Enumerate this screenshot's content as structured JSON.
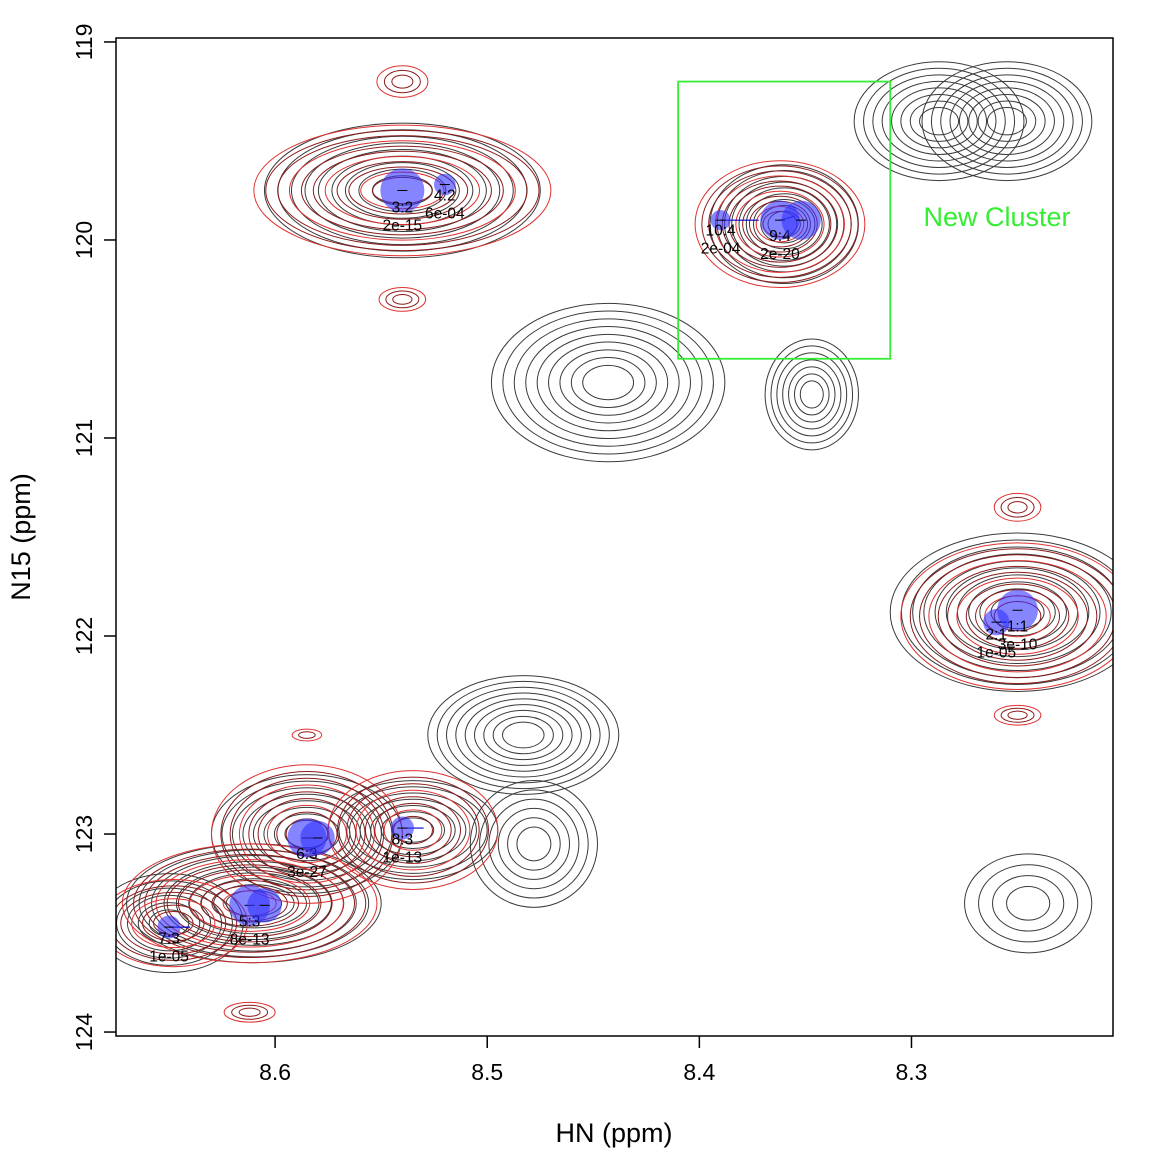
{
  "chart_data": {
    "type": "scatter",
    "subtype": "2D NMR HSQC contour overlay",
    "xlabel": "HN (ppm)",
    "ylabel": "N15 (ppm)",
    "xlim": [
      8.675,
      8.205
    ],
    "ylim": [
      124.02,
      118.98
    ],
    "x_reversed": true,
    "y_reversed": true,
    "xticks": [
      8.6,
      8.5,
      8.4,
      8.3
    ],
    "xtick_labels": [
      "8.6",
      "8.5",
      "8.4",
      "8.3"
    ],
    "yticks": [
      119,
      120,
      121,
      122,
      123,
      124
    ],
    "ytick_labels": [
      "119",
      "120",
      "121",
      "122",
      "123",
      "124"
    ],
    "grid": false,
    "colors": {
      "contour_reference": "#3a3a3a",
      "contour_sample_dark": "#8b1a1a",
      "contour_sample_light": "#e03030",
      "peak_fill": "#3333ff",
      "cluster_box": "#33ee33",
      "annotation": "#33ee33"
    },
    "contour_centers": [
      {
        "set": "reference",
        "x": 8.54,
        "y": 119.75,
        "rx": 0.065,
        "ry": 0.34,
        "levels": 9
      },
      {
        "set": "reference",
        "x": 8.36,
        "y": 119.92,
        "rx": 0.035,
        "ry": 0.3,
        "levels": 9
      },
      {
        "set": "reference",
        "x": 8.287,
        "y": 119.4,
        "rx": 0.04,
        "ry": 0.3,
        "levels": 8
      },
      {
        "set": "reference",
        "x": 8.255,
        "y": 119.4,
        "rx": 0.04,
        "ry": 0.3,
        "levels": 8
      },
      {
        "set": "reference",
        "x": 8.443,
        "y": 120.72,
        "rx": 0.055,
        "ry": 0.4,
        "levels": 9
      },
      {
        "set": "reference",
        "x": 8.347,
        "y": 120.78,
        "rx": 0.022,
        "ry": 0.28,
        "levels": 7
      },
      {
        "set": "reference",
        "x": 8.25,
        "y": 121.88,
        "rx": 0.06,
        "ry": 0.4,
        "levels": 10
      },
      {
        "set": "reference",
        "x": 8.483,
        "y": 122.5,
        "rx": 0.045,
        "ry": 0.3,
        "levels": 9
      },
      {
        "set": "reference",
        "x": 8.478,
        "y": 123.05,
        "rx": 0.03,
        "ry": 0.32,
        "levels": 6
      },
      {
        "set": "reference",
        "x": 8.245,
        "y": 123.35,
        "rx": 0.03,
        "ry": 0.25,
        "levels": 4
      },
      {
        "set": "reference",
        "x": 8.61,
        "y": 123.35,
        "rx": 0.06,
        "ry": 0.3,
        "levels": 9
      },
      {
        "set": "reference",
        "x": 8.585,
        "y": 123.0,
        "rx": 0.045,
        "ry": 0.3,
        "levels": 8
      },
      {
        "set": "reference",
        "x": 8.535,
        "y": 122.98,
        "rx": 0.04,
        "ry": 0.25,
        "levels": 7
      },
      {
        "set": "reference",
        "x": 8.65,
        "y": 123.45,
        "rx": 0.035,
        "ry": 0.25,
        "levels": 6
      },
      {
        "set": "sample",
        "x": 8.54,
        "y": 119.75,
        "rx": 0.07,
        "ry": 0.33,
        "levels": 11
      },
      {
        "set": "sample",
        "x": 8.54,
        "y": 119.2,
        "rx": 0.012,
        "ry": 0.08,
        "levels": 3
      },
      {
        "set": "sample",
        "x": 8.54,
        "y": 120.3,
        "rx": 0.011,
        "ry": 0.06,
        "levels": 3
      },
      {
        "set": "sample",
        "x": 8.362,
        "y": 119.92,
        "rx": 0.04,
        "ry": 0.32,
        "levels": 11
      },
      {
        "set": "sample",
        "x": 8.25,
        "y": 121.9,
        "rx": 0.055,
        "ry": 0.37,
        "levels": 11
      },
      {
        "set": "sample",
        "x": 8.25,
        "y": 121.35,
        "rx": 0.011,
        "ry": 0.07,
        "levels": 3
      },
      {
        "set": "sample",
        "x": 8.25,
        "y": 122.4,
        "rx": 0.011,
        "ry": 0.05,
        "levels": 3
      },
      {
        "set": "sample",
        "x": 8.585,
        "y": 123.0,
        "rx": 0.045,
        "ry": 0.35,
        "levels": 9
      },
      {
        "set": "sample",
        "x": 8.612,
        "y": 123.35,
        "rx": 0.06,
        "ry": 0.3,
        "levels": 10
      },
      {
        "set": "sample",
        "x": 8.535,
        "y": 122.98,
        "rx": 0.04,
        "ry": 0.3,
        "levels": 8
      },
      {
        "set": "sample",
        "x": 8.648,
        "y": 123.45,
        "rx": 0.035,
        "ry": 0.22,
        "levels": 6
      },
      {
        "set": "sample",
        "x": 8.612,
        "y": 123.9,
        "rx": 0.012,
        "ry": 0.05,
        "levels": 3
      },
      {
        "set": "sample",
        "x": 8.585,
        "y": 122.5,
        "rx": 0.007,
        "ry": 0.03,
        "levels": 2
      }
    ],
    "peaks": [
      {
        "x": 8.54,
        "y": 119.75,
        "r": 1.0,
        "label": "3:2",
        "pvalue": "2e-15",
        "to": [
          8.54,
          119.75
        ]
      },
      {
        "x": 8.52,
        "y": 119.72,
        "r": 0.3,
        "label": "4:2",
        "pvalue": "6e-04",
        "to": [
          8.522,
          119.72
        ]
      },
      {
        "x": 8.39,
        "y": 119.9,
        "r": 0.25,
        "label": "10:4",
        "pvalue": "2e-04",
        "to": [
          8.372,
          119.9
        ]
      },
      {
        "x": 8.362,
        "y": 119.9,
        "r": 0.85,
        "label": "9:4",
        "pvalue": "2e-20",
        "to": [
          8.355,
          119.88
        ]
      },
      {
        "x": 8.352,
        "y": 119.9,
        "r": 0.85,
        "label": "",
        "pvalue": "",
        "to": [
          8.352,
          119.9
        ]
      },
      {
        "x": 8.25,
        "y": 121.87,
        "r": 0.9,
        "label": "1:1",
        "pvalue": "3e-10",
        "to": [
          8.25,
          121.87
        ]
      },
      {
        "x": 8.26,
        "y": 121.93,
        "r": 0.45,
        "label": "2:1",
        "pvalue": "1e-05",
        "to": [
          8.255,
          121.93
        ]
      },
      {
        "x": 8.585,
        "y": 123.02,
        "r": 0.85,
        "label": "6:3",
        "pvalue": "3e-27",
        "to": [
          8.585,
          123.02
        ]
      },
      {
        "x": 8.58,
        "y": 123.02,
        "r": 0.7,
        "label": "",
        "pvalue": "",
        "to": [
          8.58,
          123.02
        ]
      },
      {
        "x": 8.612,
        "y": 123.36,
        "r": 0.9,
        "label": "5:3",
        "pvalue": "8e-13",
        "to": [
          8.612,
          123.36
        ]
      },
      {
        "x": 8.605,
        "y": 123.36,
        "r": 0.7,
        "label": "",
        "pvalue": "",
        "to": [
          8.605,
          123.36
        ]
      },
      {
        "x": 8.54,
        "y": 122.97,
        "r": 0.35,
        "label": "8:3",
        "pvalue": "1e-13",
        "to": [
          8.53,
          122.97
        ]
      },
      {
        "x": 8.65,
        "y": 123.47,
        "r": 0.35,
        "label": "7:3",
        "pvalue": "1e-05",
        "to": [
          8.64,
          123.47
        ]
      }
    ],
    "cluster_box": {
      "x0": 8.41,
      "x1": 8.31,
      "y0": 119.2,
      "y1": 120.6
    },
    "annotations": [
      {
        "text": "New Cluster",
        "x": 8.225,
        "y": 119.88
      }
    ]
  }
}
